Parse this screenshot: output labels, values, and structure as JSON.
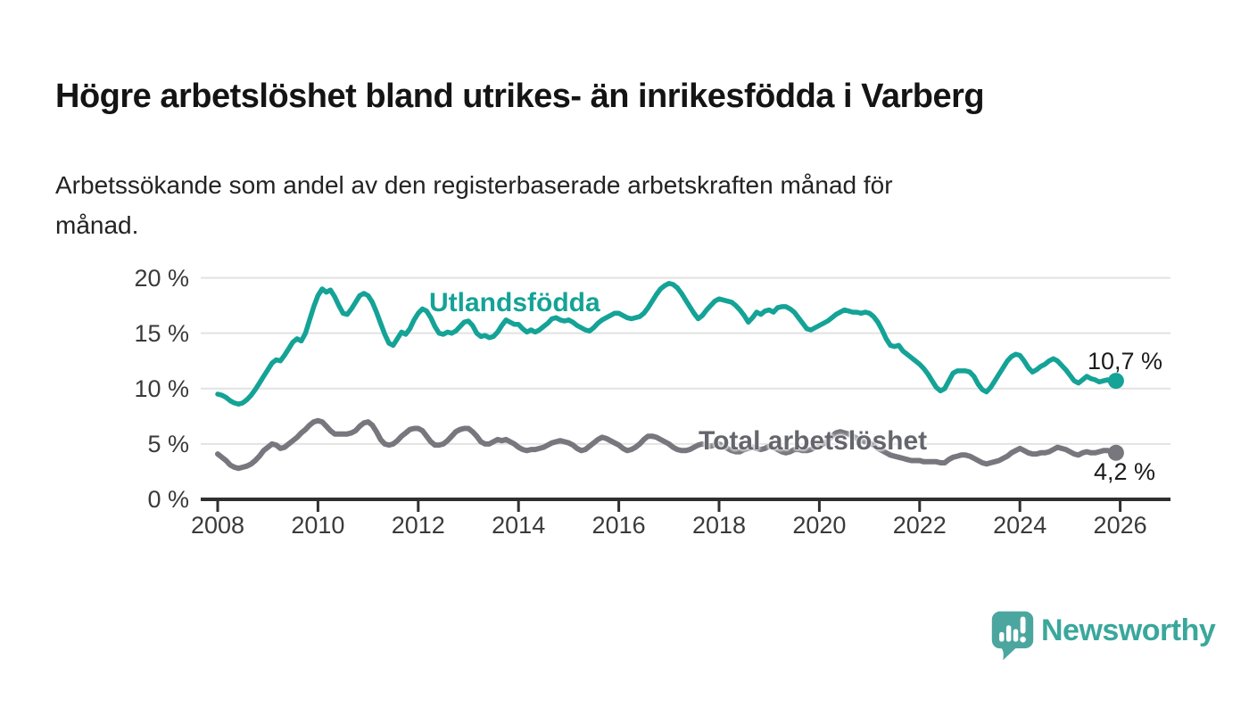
{
  "header": {
    "title": "Högre arbetslöshet bland utrikes- än inrikesfödda i Varberg",
    "subtitle": "Arbetssökande som andel av den registerbaserade arbetskraften månad för månad.",
    "subtitle_line1": "Arbetssökande som andel av den registerbaserade arbetskraften månad för",
    "subtitle_line2": "månad."
  },
  "colors": {
    "accent_teal": "#14a396",
    "line_gray": "#77777d",
    "series_label_gray": "#65656d",
    "grid": "#e2e2e2",
    "axis": "#2f2f2f",
    "tick_text": "#3a3a3a",
    "title_text": "#141414",
    "value_label_text": "#1b1b1b",
    "logo_teal": "#4ba69f",
    "logo_text_teal": "#3aa79c"
  },
  "footer": {
    "brand": "Newsworthy",
    "logo_icon": "speech-bubble-bar-chart-exclamation"
  },
  "chart_data": {
    "type": "line",
    "unit": "%",
    "grid": true,
    "legend": "inline-labels",
    "x_start_year": 2008,
    "points_per_year": 12,
    "xlim_years": [
      2008,
      2026.3
    ],
    "ylim": [
      0,
      21
    ],
    "x_tick_years": [
      2008,
      2010,
      2012,
      2014,
      2016,
      2018,
      2020,
      2022,
      2024,
      2026
    ],
    "x_tick_labels": [
      "2008",
      "2010",
      "2012",
      "2014",
      "2016",
      "2018",
      "2020",
      "2022",
      "2024",
      "2026"
    ],
    "y_ticks": [
      {
        "value": 0,
        "label": "0 %"
      },
      {
        "value": 5,
        "label": "5 %"
      },
      {
        "value": 10,
        "label": "10 %"
      },
      {
        "value": 15,
        "label": "15 %"
      },
      {
        "value": 20,
        "label": "20 %"
      }
    ],
    "series": [
      {
        "name": "Utlandsfödda",
        "color": "#14a396",
        "end_label": "10,7 %",
        "end_value": 10.7,
        "values": [
          9.5,
          9.4,
          9.2,
          8.9,
          8.7,
          8.6,
          8.7,
          9.0,
          9.4,
          9.9,
          10.5,
          11.1,
          11.7,
          12.3,
          12.6,
          12.5,
          13.0,
          13.6,
          14.2,
          14.5,
          14.3,
          15.0,
          16.2,
          17.4,
          18.4,
          19.0,
          18.7,
          18.9,
          18.3,
          17.5,
          16.8,
          16.7,
          17.2,
          17.8,
          18.4,
          18.6,
          18.4,
          17.8,
          16.9,
          15.9,
          14.9,
          14.1,
          13.9,
          14.5,
          15.1,
          14.9,
          15.4,
          16.2,
          16.8,
          17.2,
          17.0,
          16.4,
          15.6,
          15.0,
          14.9,
          15.1,
          15.0,
          15.2,
          15.6,
          16.0,
          16.1,
          15.7,
          15.0,
          14.7,
          14.8,
          14.6,
          14.7,
          15.1,
          15.7,
          16.2,
          16.0,
          15.8,
          15.8,
          15.4,
          15.1,
          15.3,
          15.1,
          15.3,
          15.6,
          15.9,
          16.3,
          16.4,
          16.2,
          16.1,
          16.2,
          16.0,
          15.7,
          15.5,
          15.3,
          15.2,
          15.5,
          15.9,
          16.2,
          16.4,
          16.6,
          16.8,
          16.8,
          16.6,
          16.4,
          16.3,
          16.4,
          16.5,
          16.8,
          17.3,
          17.9,
          18.5,
          19.0,
          19.3,
          19.5,
          19.4,
          19.1,
          18.6,
          18.0,
          17.4,
          16.8,
          16.3,
          16.6,
          17.1,
          17.5,
          17.9,
          18.1,
          18.0,
          17.9,
          17.8,
          17.5,
          17.1,
          16.6,
          16.0,
          16.4,
          16.9,
          16.7,
          17.0,
          17.1,
          16.9,
          17.3,
          17.4,
          17.4,
          17.2,
          16.9,
          16.4,
          15.9,
          15.4,
          15.3,
          15.5,
          15.7,
          15.9,
          16.1,
          16.4,
          16.7,
          16.9,
          17.1,
          17.0,
          16.9,
          16.9,
          16.8,
          16.9,
          16.8,
          16.5,
          16.0,
          15.3,
          14.5,
          13.9,
          13.8,
          13.9,
          13.4,
          13.1,
          12.8,
          12.5,
          12.2,
          11.8,
          11.3,
          10.7,
          10.1,
          9.8,
          10.0,
          10.7,
          11.4,
          11.6,
          11.6,
          11.6,
          11.5,
          11.1,
          10.4,
          9.9,
          9.7,
          10.1,
          10.7,
          11.3,
          11.9,
          12.5,
          12.9,
          13.1,
          13.0,
          12.5,
          11.9,
          11.5,
          11.7,
          12.0,
          12.2,
          12.5,
          12.7,
          12.5,
          12.1,
          11.7,
          11.2,
          10.7,
          10.5,
          10.8,
          11.1,
          10.9,
          10.8,
          10.6,
          10.7,
          10.8,
          10.6,
          10.7
        ]
      },
      {
        "name": "Total arbetslöshet",
        "color": "#77777d",
        "end_label": "4,2 %",
        "end_value": 4.2,
        "values": [
          4.1,
          3.8,
          3.5,
          3.1,
          2.9,
          2.8,
          2.9,
          3.0,
          3.2,
          3.5,
          3.9,
          4.4,
          4.7,
          5.0,
          4.9,
          4.6,
          4.7,
          5.0,
          5.3,
          5.6,
          6.0,
          6.3,
          6.7,
          7.0,
          7.1,
          7.0,
          6.6,
          6.2,
          5.9,
          5.9,
          5.9,
          5.9,
          6.0,
          6.2,
          6.6,
          6.9,
          7.0,
          6.7,
          6.1,
          5.4,
          5.0,
          4.9,
          5.0,
          5.3,
          5.7,
          6.0,
          6.3,
          6.4,
          6.4,
          6.2,
          5.7,
          5.2,
          4.9,
          4.9,
          5.0,
          5.3,
          5.7,
          6.1,
          6.3,
          6.4,
          6.4,
          6.1,
          5.7,
          5.2,
          5.0,
          5.0,
          5.2,
          5.4,
          5.3,
          5.4,
          5.2,
          5.0,
          4.7,
          4.5,
          4.4,
          4.5,
          4.5,
          4.6,
          4.7,
          4.9,
          5.1,
          5.2,
          5.3,
          5.2,
          5.1,
          4.9,
          4.6,
          4.4,
          4.5,
          4.8,
          5.1,
          5.4,
          5.6,
          5.5,
          5.3,
          5.1,
          4.9,
          4.6,
          4.4,
          4.5,
          4.7,
          5.0,
          5.4,
          5.7,
          5.7,
          5.6,
          5.4,
          5.2,
          5.0,
          4.7,
          4.5,
          4.4,
          4.4,
          4.5,
          4.7,
          4.9,
          5.0,
          4.9,
          4.8,
          4.9,
          5.0,
          4.8,
          4.6,
          4.4,
          4.3,
          4.3,
          4.5,
          4.6,
          4.7,
          4.6,
          4.5,
          4.6,
          4.8,
          4.7,
          4.5,
          4.3,
          4.2,
          4.3,
          4.5,
          4.5,
          4.4,
          4.4,
          4.5,
          4.7,
          4.9,
          5.0,
          5.3,
          5.7,
          6.0,
          6.1,
          6.0,
          5.9,
          5.7,
          5.5,
          5.3,
          5.2,
          5.1,
          4.9,
          4.6,
          4.4,
          4.2,
          4.0,
          3.9,
          3.8,
          3.7,
          3.6,
          3.5,
          3.5,
          3.5,
          3.4,
          3.4,
          3.4,
          3.4,
          3.3,
          3.3,
          3.6,
          3.8,
          3.9,
          4.0,
          4.0,
          3.9,
          3.7,
          3.5,
          3.3,
          3.2,
          3.3,
          3.4,
          3.5,
          3.7,
          3.9,
          4.2,
          4.4,
          4.6,
          4.4,
          4.2,
          4.1,
          4.1,
          4.2,
          4.2,
          4.3,
          4.5,
          4.7,
          4.6,
          4.5,
          4.3,
          4.1,
          4.0,
          4.2,
          4.3,
          4.2,
          4.2,
          4.3,
          4.4,
          4.4,
          4.3,
          4.2
        ]
      }
    ]
  }
}
